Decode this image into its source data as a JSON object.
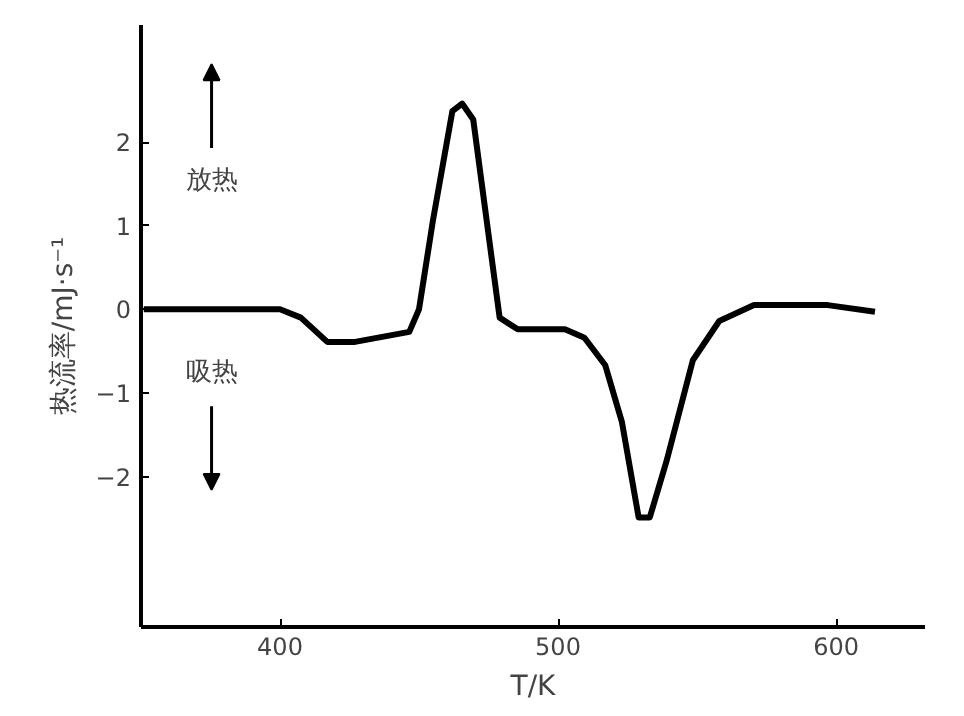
{
  "chart_data": {
    "type": "line",
    "xlabel": "T/K",
    "ylabel": "热流率/mJ·s⁻¹",
    "annotations": [
      "放热",
      "吸热"
    ],
    "xlim": [
      350,
      632
    ],
    "ylim": [
      -3.8,
      3.4
    ],
    "xticks": [
      400,
      500,
      600
    ],
    "yticks": [
      -2,
      -1,
      0,
      1,
      2
    ],
    "grid": false,
    "line_style": "solid",
    "x": [
      351,
      400,
      407.5,
      417,
      427,
      446.5,
      450,
      455,
      462,
      465.5,
      469.5,
      475.5,
      479,
      485.5,
      502.5,
      509.5,
      517,
      523,
      529,
      533,
      539,
      548.5,
      558,
      570.5,
      597,
      614
    ],
    "series": [
      {
        "color": "#000000",
        "values": [
          0,
          0,
          -0.1,
          -0.39,
          -0.39,
          -0.27,
          0,
          1.06,
          2.37,
          2.46,
          2.27,
          0.77,
          -0.1,
          -0.24,
          -0.24,
          -0.34,
          -0.67,
          -1.35,
          -2.49,
          -2.49,
          -1.82,
          -0.61,
          -0.14,
          0.05,
          0.05,
          -0.03
        ]
      }
    ]
  }
}
